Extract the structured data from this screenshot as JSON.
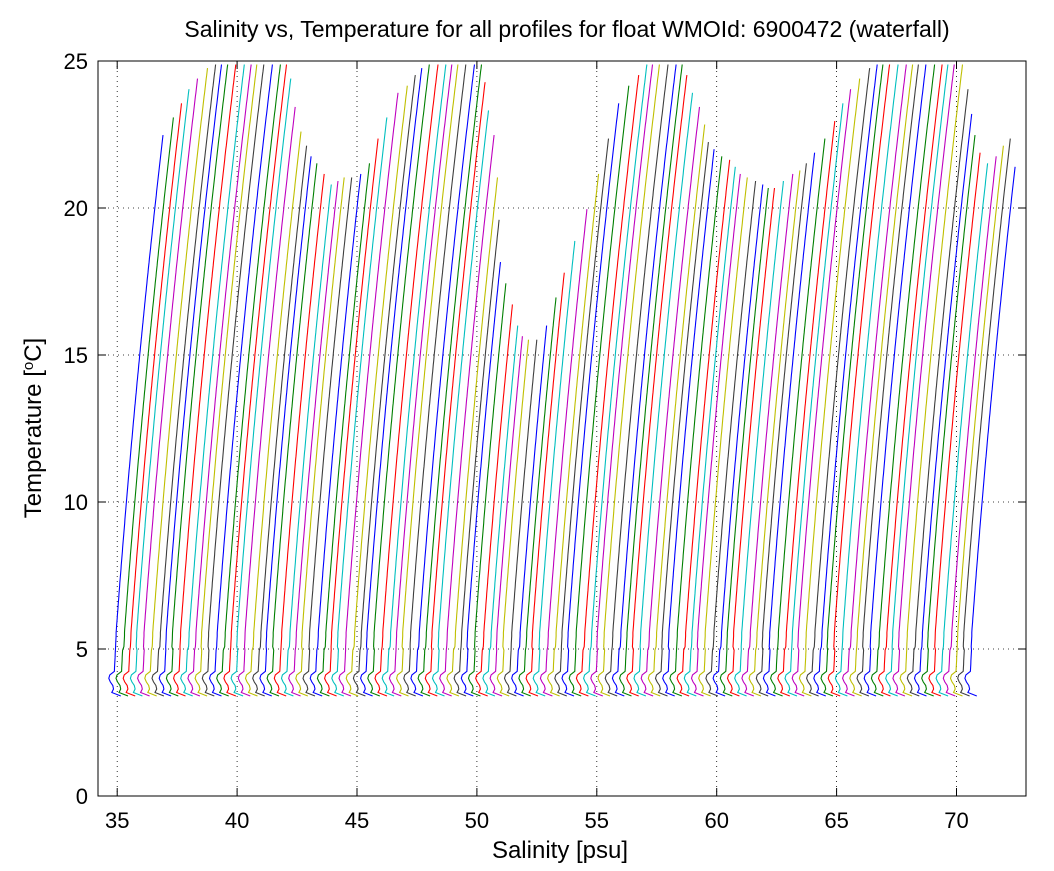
{
  "chart_data": {
    "type": "line",
    "title": "Salinity vs, Temperature for all profiles for float WMOId: 6900472 (waterfall)",
    "xlabel": "Salinity [psu]",
    "ylabel_main": "Temperature [",
    "ylabel_sup": "o",
    "ylabel_end": "C]",
    "xlim": [
      34.2,
      72.9
    ],
    "ylim": [
      0,
      25
    ],
    "xticks": [
      35,
      40,
      45,
      50,
      55,
      60,
      65,
      70
    ],
    "yticks": [
      0,
      5,
      10,
      15,
      20,
      25
    ],
    "grid": true,
    "legend": "none",
    "waterfall": {
      "profile_count": 120,
      "first_profile_base_salinity": 35.0,
      "offset_per_profile": 0.3,
      "bottom_temperature": 3.4,
      "colors": [
        "#0000ff",
        "#007f00",
        "#ff0000",
        "#00bfbf",
        "#bf00bf",
        "#bfbf00",
        "#3f3f3f"
      ],
      "surface_temperature_envelope": [
        {
          "x": 36.6,
          "y": 22.6
        },
        {
          "x": 37.3,
          "y": 23.8
        },
        {
          "x": 38.2,
          "y": 25.0
        },
        {
          "x": 41.5,
          "y": 25.0
        },
        {
          "x": 42.4,
          "y": 22.4
        },
        {
          "x": 43.8,
          "y": 20.9
        },
        {
          "x": 45.2,
          "y": 21.3
        },
        {
          "x": 46.2,
          "y": 24.0
        },
        {
          "x": 47.3,
          "y": 25.0
        },
        {
          "x": 49.6,
          "y": 25.0
        },
        {
          "x": 50.4,
          "y": 22.5
        },
        {
          "x": 51.3,
          "y": 18.2
        },
        {
          "x": 52.3,
          "y": 15.8
        },
        {
          "x": 53.2,
          "y": 15.5
        },
        {
          "x": 54.2,
          "y": 18.5
        },
        {
          "x": 55.6,
          "y": 24.0
        },
        {
          "x": 56.5,
          "y": 25.0
        },
        {
          "x": 58.0,
          "y": 25.0
        },
        {
          "x": 59.4,
          "y": 22.3
        },
        {
          "x": 60.8,
          "y": 21.3
        },
        {
          "x": 62.3,
          "y": 20.7
        },
        {
          "x": 63.8,
          "y": 21.7
        },
        {
          "x": 65.0,
          "y": 24.0
        },
        {
          "x": 65.8,
          "y": 25.0
        },
        {
          "x": 69.6,
          "y": 25.0
        },
        {
          "x": 70.2,
          "y": 23.2
        },
        {
          "x": 71.0,
          "y": 21.5
        },
        {
          "x": 72.0,
          "y": 22.4
        },
        {
          "x": 72.3,
          "y": 21.4
        }
      ]
    }
  }
}
